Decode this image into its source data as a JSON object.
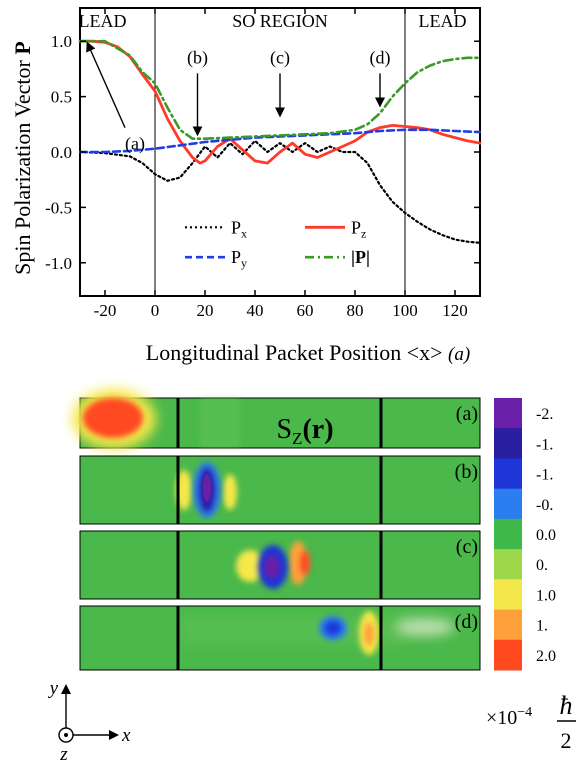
{
  "chart_data": [
    {
      "type": "line",
      "ylabel": "Spin Polarization Vector",
      "ylabel_bold": "P",
      "xlabel": "Longitudinal Packet Position <x>",
      "xlabel_unit": "(a)",
      "xlim": [
        -30,
        130
      ],
      "ylim": [
        -1.3,
        1.3
      ],
      "x_ticks": [
        -20,
        0,
        20,
        40,
        60,
        80,
        100,
        120
      ],
      "x_tick_labels": [
        "-20",
        "0",
        "20",
        "40",
        "60",
        "80",
        "100",
        "120"
      ],
      "y_ticks": [
        1.0,
        0.5,
        0.0,
        -0.5,
        -1.0
      ],
      "y_tick_labels": [
        "1.0",
        "0.5",
        "0.0",
        "-0.5",
        "-1.0"
      ],
      "region_boundaries": [
        0,
        100
      ],
      "region_labels": [
        {
          "text": "LEAD",
          "x": -21
        },
        {
          "text": "SO REGION",
          "x": 50
        },
        {
          "text": "LEAD",
          "x": 115
        }
      ],
      "annotations": [
        {
          "label": "(a)",
          "x": -27,
          "y": 1.0
        },
        {
          "label": "(b)",
          "x": 17,
          "y": 0.16
        },
        {
          "label": "(c)",
          "x": 50,
          "y": 0.33
        },
        {
          "label": "(d)",
          "x": 90,
          "y": 0.42
        }
      ],
      "legend_position": "lower-center",
      "series": [
        {
          "name": "P_x",
          "name_base": "P",
          "name_sub": "x",
          "style": "dotted",
          "color": "#000000",
          "x": [
            -30,
            -20,
            -10,
            -5,
            0,
            5,
            10,
            15,
            20,
            25,
            30,
            35,
            40,
            45,
            50,
            55,
            60,
            65,
            70,
            75,
            80,
            85,
            90,
            95,
            100,
            105,
            110,
            115,
            120,
            125,
            130
          ],
          "y": [
            0.0,
            -0.01,
            -0.04,
            -0.1,
            -0.2,
            -0.26,
            -0.23,
            -0.1,
            0.05,
            -0.05,
            0.08,
            -0.02,
            0.1,
            0.0,
            0.08,
            0.0,
            0.08,
            0.0,
            0.05,
            0.0,
            0.0,
            -0.1,
            -0.3,
            -0.45,
            -0.55,
            -0.63,
            -0.7,
            -0.75,
            -0.79,
            -0.81,
            -0.82
          ]
        },
        {
          "name": "P_z",
          "name_base": "P",
          "name_sub": "z",
          "style": "solid",
          "color": "#ff3a2a",
          "x": [
            -30,
            -25,
            -20,
            -15,
            -10,
            -5,
            0,
            5,
            10,
            15,
            18,
            20,
            25,
            30,
            35,
            40,
            45,
            50,
            55,
            60,
            65,
            70,
            75,
            80,
            85,
            90,
            95,
            100,
            105,
            110,
            115,
            120,
            125,
            130
          ],
          "y": [
            1.0,
            1.0,
            0.99,
            0.95,
            0.86,
            0.7,
            0.55,
            0.3,
            0.1,
            -0.05,
            -0.1,
            -0.08,
            0.05,
            0.12,
            0.02,
            -0.08,
            -0.1,
            0.0,
            0.08,
            -0.02,
            -0.05,
            0.0,
            0.05,
            0.1,
            0.18,
            0.22,
            0.24,
            0.23,
            0.22,
            0.2,
            0.16,
            0.13,
            0.1,
            0.08
          ]
        },
        {
          "name": "P_y",
          "name_base": "P",
          "name_sub": "y",
          "style": "dashed",
          "color": "#1f3ee8",
          "x": [
            -30,
            -20,
            -10,
            0,
            10,
            20,
            30,
            40,
            50,
            60,
            70,
            80,
            90,
            100,
            110,
            120,
            130
          ],
          "y": [
            0.0,
            0.0,
            0.01,
            0.03,
            0.06,
            0.09,
            0.11,
            0.13,
            0.14,
            0.15,
            0.16,
            0.17,
            0.19,
            0.2,
            0.2,
            0.19,
            0.18
          ]
        },
        {
          "name": "|P|",
          "name_base": "|P|",
          "style": "dash-dot",
          "color": "#3a9a28",
          "x": [
            -30,
            -20,
            -10,
            -5,
            0,
            5,
            10,
            15,
            20,
            30,
            40,
            50,
            60,
            70,
            80,
            85,
            90,
            95,
            100,
            105,
            110,
            115,
            120,
            125,
            130
          ],
          "y": [
            1.0,
            1.0,
            0.87,
            0.72,
            0.62,
            0.4,
            0.2,
            0.12,
            0.12,
            0.13,
            0.14,
            0.15,
            0.16,
            0.17,
            0.2,
            0.25,
            0.35,
            0.5,
            0.62,
            0.72,
            0.78,
            0.82,
            0.84,
            0.85,
            0.85
          ]
        }
      ]
    },
    {
      "type": "heatmap",
      "title": "S",
      "title_sub": "Z",
      "title_arg": "(r)",
      "panels": [
        "(a)",
        "(b)",
        "(c)",
        "(d)"
      ],
      "colorbar_ticks": [
        "-2.",
        "-1.",
        "-1.",
        "-0.",
        "0.0",
        "0.",
        "1.0",
        "1.",
        "2.0"
      ],
      "colorbar_colors": [
        "#6a1fa8",
        "#2a1fa0",
        "#1e35d8",
        "#2a7ef0",
        "#3fb84a",
        "#9dd74a",
        "#f5e84a",
        "#ffa03a",
        "#ff4a20"
      ],
      "colorbar_unit_factor": "×10",
      "colorbar_unit_exp": "−4",
      "colorbar_unit_num": "ħ",
      "colorbar_unit_den": "2",
      "axes_x": "x",
      "axes_y": "y",
      "axes_z": "z",
      "background_color": "#4ab84a"
    }
  ]
}
